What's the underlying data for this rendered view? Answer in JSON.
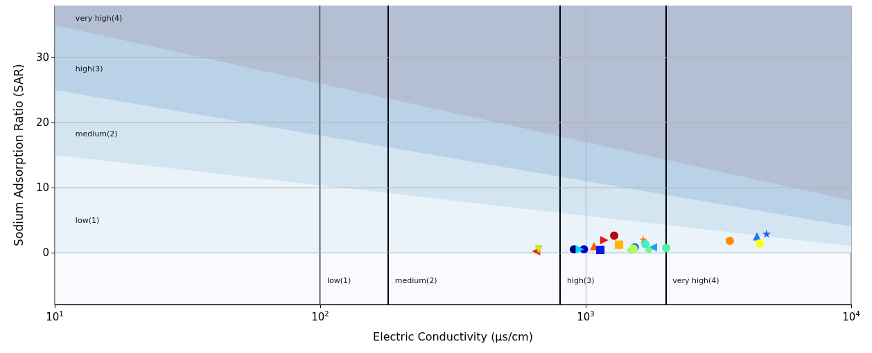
{
  "chart_data": {
    "type": "scatter",
    "xlabel": "Electric Conductivity (μs/cm)",
    "ylabel": "Sodium Adsorption Ratio (SAR)",
    "log": "x",
    "xlim": [
      10,
      10000
    ],
    "xticks": [
      {
        "value": 10,
        "label": "10$^{1}$"
      },
      {
        "value": 100,
        "label": "10$^{2}$"
      },
      {
        "value": 1000,
        "label": "10$^{3}$"
      },
      {
        "value": 10000,
        "label": "10$^{4}$"
      }
    ],
    "ylim": [
      -8,
      38
    ],
    "yticks": [
      0,
      10,
      20,
      30
    ],
    "grid": true,
    "stacked": true,
    "ref_lines": [
      {
        "axis": "x",
        "value": 100,
        "label": "low(1)",
        "color": "#000000"
      },
      {
        "axis": "x",
        "value": 180,
        "label": "medium(2)",
        "color": "#000000"
      },
      {
        "axis": "x",
        "value": 800,
        "label": "high(3)",
        "color": "#000000"
      },
      {
        "axis": "x",
        "value": 2000,
        "label": "very high(4)",
        "color": "#000000"
      }
    ],
    "series": [
      {
        "type": "area",
        "name": "low(1)",
        "color": "#ebf3fa",
        "x": [
          10,
          10000
        ],
        "values": [
          15,
          1
        ]
      },
      {
        "type": "area",
        "name": "medium(2)",
        "color": "#d2e5f1",
        "x": [
          10,
          10000
        ],
        "values": [
          10,
          3
        ]
      },
      {
        "type": "area",
        "name": "high(3)",
        "color": "#bad2e8",
        "x": [
          10,
          10000
        ],
        "values": [
          10,
          4
        ]
      },
      {
        "type": "area",
        "name": "very high(4)",
        "color": "#b4bfd3",
        "x": [
          10,
          10000
        ],
        "values": [
          3,
          30
        ]
      },
      {
        "type": "scatter",
        "color": "#f0280e",
        "marker": "triangle-left",
        "x": [
          650
        ],
        "values": [
          0.2
        ]
      },
      {
        "type": "scatter",
        "color": "#c8e61e",
        "marker": "triangle-down",
        "x": [
          665
        ],
        "values": [
          0.5
        ]
      },
      {
        "type": "scatter",
        "color": "#0000cc",
        "marker": "circle",
        "x": [
          985
        ],
        "values": [
          0.5
        ]
      },
      {
        "type": "scatter",
        "color": "#000080",
        "marker": "circle",
        "x": [
          903
        ],
        "values": [
          0.5
        ]
      },
      {
        "type": "scatter",
        "color": "#00d4ff",
        "marker": "triangle-right",
        "x": [
          950
        ],
        "values": [
          0.5
        ]
      },
      {
        "type": "scatter",
        "color": "#ff5a0a",
        "marker": "triangle",
        "x": [
          1075
        ],
        "values": [
          1.0
        ]
      },
      {
        "type": "scatter",
        "color": "#0a14e6",
        "marker": "square",
        "x": [
          1135
        ],
        "values": [
          0.4
        ]
      },
      {
        "type": "scatter",
        "color": "#e8141c",
        "marker": "triangle-right",
        "x": [
          1175
        ],
        "values": [
          1.9
        ]
      },
      {
        "color": "#b40a0a",
        "marker": "circle",
        "x": [
          1280
        ],
        "values": [
          2.6
        ]
      },
      {
        "type": "scatter",
        "color": "#ffb400",
        "marker": "square",
        "x": [
          1334
        ],
        "values": [
          1.2
        ]
      },
      {
        "type": "scatter",
        "color": "#1a5cff",
        "marker": "circle",
        "x": [
          1530
        ],
        "values": [
          0.8
        ]
      },
      {
        "type": "scatter",
        "color": "#7dff7a",
        "marker": "diamond",
        "x": [
          1478
        ],
        "values": [
          0.4
        ]
      },
      {
        "type": "scatter",
        "color": "#b4ff4a",
        "marker": "circle",
        "x": [
          1514
        ],
        "values": [
          0.6
        ]
      },
      {
        "type": "scatter",
        "color": "#ff7814",
        "marker": "star",
        "x": [
          1648
        ],
        "values": [
          2.0
        ]
      },
      {
        "type": "scatter",
        "color": "#3cf0c8",
        "marker": "circle",
        "x": [
          1678
        ],
        "values": [
          1.3
        ]
      },
      {
        "type": "scatter",
        "color": "#1ea0ff",
        "marker": "triangle-left",
        "x": [
          1791
        ],
        "values": [
          0.8
        ]
      },
      {
        "type": "scatter",
        "color": "#64ff8c",
        "marker": "diamond",
        "x": [
          1729
        ],
        "values": [
          0.4
        ]
      },
      {
        "type": "scatter",
        "color": "#50f0a0",
        "marker": "circle",
        "x": [
          2010
        ],
        "values": [
          0.7
        ]
      },
      {
        "color": "#ff8c00",
        "marker": "circle",
        "x": [
          3490
        ],
        "values": [
          1.8
        ]
      },
      {
        "type": "scatter",
        "color": "#1e78ff",
        "marker": "triangle",
        "x": [
          4415
        ],
        "values": [
          2.5
        ]
      },
      {
        "type": "scatter",
        "color": "#ffff14",
        "marker": "circle",
        "x": [
          4520
        ],
        "values": [
          1.4
        ]
      },
      {
        "type": "scatter",
        "color": "#1464f0",
        "marker": "star",
        "x": [
          4800
        ],
        "values": [
          2.9
        ]
      }
    ]
  }
}
